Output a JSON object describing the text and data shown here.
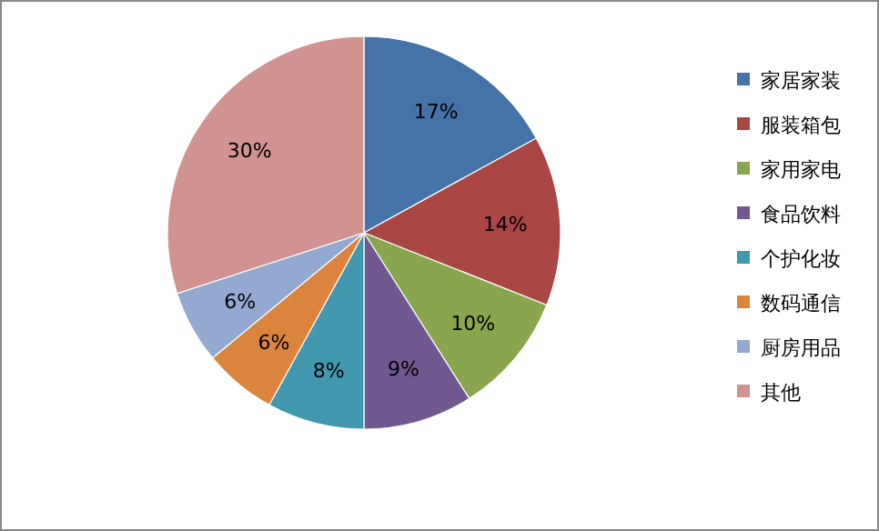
{
  "chart_data": {
    "type": "pie",
    "categories": [
      "家居家装",
      "服装箱包",
      "家用家电",
      "食品饮料",
      "个护化妆",
      "数码通信",
      "厨房用品",
      "其他"
    ],
    "values": [
      17,
      14,
      10,
      9,
      8,
      6,
      6,
      30
    ],
    "colors": [
      "#4572a7",
      "#aa4643",
      "#89a54e",
      "#71588f",
      "#4198af",
      "#db843d",
      "#93a9cf",
      "#d19392"
    ],
    "value_labels": [
      "17%",
      "14%",
      "10%",
      "9%",
      "8%",
      "6%",
      "6%",
      "30%"
    ],
    "legend": "right"
  }
}
